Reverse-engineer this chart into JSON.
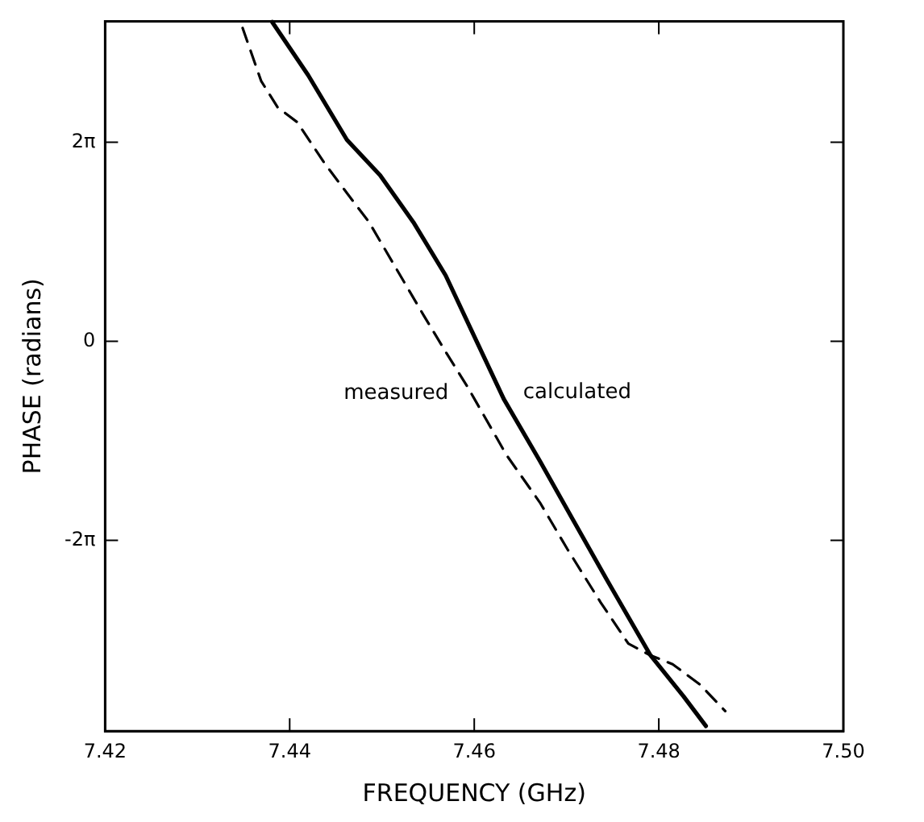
{
  "chart_data": {
    "type": "line",
    "xlabel": "FREQUENCY (GHz)",
    "ylabel": "PHASE (radians)",
    "xlim": [
      7.42,
      7.5
    ],
    "xticks": [
      7.42,
      7.44,
      7.46,
      7.48,
      {
        "value": 7.5,
        "label": "7.50"
      }
    ],
    "ylim": [
      -12.3,
      10.1
    ],
    "yticks": [
      {
        "value": -6.283,
        "label": "-2π"
      },
      {
        "value": 0,
        "label": "0"
      },
      {
        "value": 6.283,
        "label": "2π"
      }
    ],
    "grid": false,
    "legend": false,
    "marker": "none",
    "series": [
      {
        "name": "calculated",
        "color": "#000000",
        "line_style": "solid",
        "x": [
          7.4381,
          7.442,
          7.4462,
          7.4498,
          7.4534,
          7.4569,
          7.4599,
          7.4632,
          7.4671,
          7.4707,
          7.4743,
          7.4791,
          7.4827,
          7.4851
        ],
        "values": [
          10.08,
          8.4,
          6.36,
          5.24,
          3.76,
          2.08,
          0.22,
          -1.82,
          -3.77,
          -5.63,
          -7.49,
          -9.91,
          -11.21,
          -12.14
        ]
      },
      {
        "name": "measured",
        "color": "#000000",
        "line_style": "dashed",
        "x": [
          7.4349,
          7.4369,
          7.4387,
          7.4408,
          7.4438,
          7.4462,
          7.4486,
          7.4516,
          7.4546,
          7.4569,
          7.4593,
          7.4602,
          7.4635,
          7.4671,
          7.4701,
          7.4737,
          7.4767,
          7.4791,
          7.4815,
          7.4845,
          7.4872
        ],
        "values": [
          9.89,
          8.22,
          7.38,
          6.92,
          5.61,
          4.68,
          3.76,
          2.27,
          0.78,
          -0.33,
          -1.45,
          -1.91,
          -3.59,
          -5.08,
          -6.56,
          -8.24,
          -9.54,
          -9.91,
          -10.19,
          -10.84,
          -11.67
        ]
      }
    ]
  }
}
